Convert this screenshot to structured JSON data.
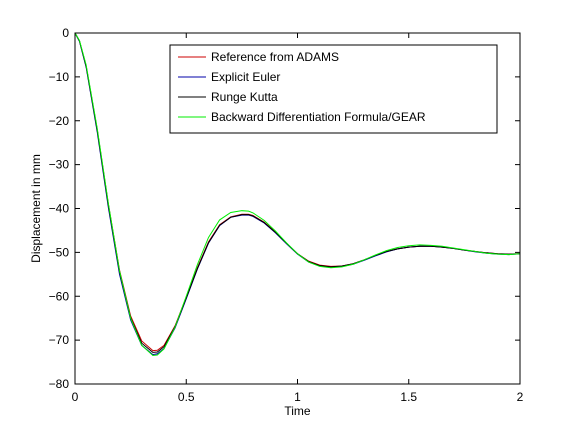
{
  "chart_data": {
    "type": "line",
    "xlabel": "Time",
    "ylabel": "Displacement in mm",
    "xlim": [
      0,
      2
    ],
    "ylim": [
      -80,
      0
    ],
    "xticks": [
      0,
      0.5,
      1,
      1.5,
      2
    ],
    "xtick_labels": [
      "0",
      "0.5",
      "1",
      "1.5",
      "2"
    ],
    "yticks": [
      0,
      -10,
      -20,
      -30,
      -40,
      -50,
      -60,
      -70,
      -80
    ],
    "ytick_labels": [
      "0",
      "−10",
      "−20",
      "−30",
      "−40",
      "−50",
      "−60",
      "−70",
      "−80"
    ],
    "legend_position": "top-right",
    "grid": false,
    "series": [
      {
        "name": "Reference from ADAMS",
        "color": "#cc0000",
        "x": [
          0,
          0.02,
          0.05,
          0.1,
          0.15,
          0.2,
          0.25,
          0.3,
          0.35,
          0.37,
          0.4,
          0.45,
          0.5,
          0.55,
          0.6,
          0.65,
          0.7,
          0.75,
          0.78,
          0.8,
          0.85,
          0.9,
          0.95,
          1.0,
          1.05,
          1.1,
          1.15,
          1.2,
          1.25,
          1.3,
          1.35,
          1.4,
          1.45,
          1.5,
          1.55,
          1.6,
          1.65,
          1.7,
          1.75,
          1.8,
          1.85,
          1.9,
          1.95,
          2.0
        ],
        "values": [
          0,
          -1.8,
          -7.5,
          -22,
          -39,
          -54,
          -64.5,
          -70.2,
          -72.4,
          -72.3,
          -71.2,
          -66.7,
          -60.2,
          -53.5,
          -47.6,
          -43.7,
          -41.9,
          -41.3,
          -41.3,
          -41.6,
          -43.1,
          -45.3,
          -47.9,
          -50.3,
          -52.0,
          -52.9,
          -53.2,
          -53.1,
          -52.6,
          -51.7,
          -50.7,
          -49.8,
          -49.2,
          -48.8,
          -48.6,
          -48.6,
          -48.8,
          -49.1,
          -49.5,
          -49.8,
          -50.1,
          -50.3,
          -50.4,
          -50.3
        ]
      },
      {
        "name": "Explicit Euler",
        "color": "#0000aa",
        "x": [
          0,
          0.02,
          0.05,
          0.1,
          0.15,
          0.2,
          0.25,
          0.3,
          0.35,
          0.37,
          0.4,
          0.45,
          0.5,
          0.55,
          0.6,
          0.65,
          0.7,
          0.75,
          0.78,
          0.8,
          0.85,
          0.9,
          0.95,
          1.0,
          1.05,
          1.1,
          1.15,
          1.2,
          1.25,
          1.3,
          1.35,
          1.4,
          1.45,
          1.5,
          1.55,
          1.6,
          1.65,
          1.7,
          1.75,
          1.8,
          1.85,
          1.9,
          1.95,
          2.0
        ],
        "values": [
          0,
          -1.9,
          -7.8,
          -22.6,
          -39.8,
          -55,
          -65.4,
          -71.2,
          -73.3,
          -73.1,
          -71.9,
          -67.2,
          -60.6,
          -53.8,
          -47.9,
          -43.9,
          -42.0,
          -41.5,
          -41.5,
          -41.8,
          -43.3,
          -45.5,
          -48.0,
          -50.4,
          -52.2,
          -53.1,
          -53.4,
          -53.2,
          -52.7,
          -51.8,
          -50.8,
          -49.9,
          -49.2,
          -48.8,
          -48.6,
          -48.6,
          -48.8,
          -49.1,
          -49.5,
          -49.9,
          -50.2,
          -50.4,
          -50.5,
          -50.3
        ]
      },
      {
        "name": "Runge Kutta",
        "color": "#000000",
        "x": [
          0,
          0.02,
          0.05,
          0.1,
          0.15,
          0.2,
          0.25,
          0.3,
          0.35,
          0.37,
          0.4,
          0.45,
          0.5,
          0.55,
          0.6,
          0.65,
          0.7,
          0.75,
          0.78,
          0.8,
          0.85,
          0.9,
          0.95,
          1.0,
          1.05,
          1.1,
          1.15,
          1.2,
          1.25,
          1.3,
          1.35,
          1.4,
          1.45,
          1.5,
          1.55,
          1.6,
          1.65,
          1.7,
          1.75,
          1.8,
          1.85,
          1.9,
          1.95,
          2.0
        ],
        "values": [
          0,
          -1.8,
          -7.6,
          -22.2,
          -39.3,
          -54.4,
          -64.9,
          -70.7,
          -72.8,
          -72.7,
          -71.5,
          -66.9,
          -60.4,
          -53.7,
          -47.8,
          -43.8,
          -42.0,
          -41.4,
          -41.4,
          -41.7,
          -43.2,
          -45.4,
          -47.9,
          -50.3,
          -52.1,
          -53.0,
          -53.3,
          -53.1,
          -52.6,
          -51.7,
          -50.7,
          -49.8,
          -49.2,
          -48.8,
          -48.6,
          -48.6,
          -48.8,
          -49.1,
          -49.5,
          -49.8,
          -50.1,
          -50.3,
          -50.4,
          -50.3
        ]
      },
      {
        "name": "Backward Differentiation Formula/GEAR",
        "color": "#00ee00",
        "x": [
          0,
          0.02,
          0.05,
          0.1,
          0.15,
          0.2,
          0.25,
          0.3,
          0.35,
          0.37,
          0.4,
          0.45,
          0.5,
          0.55,
          0.6,
          0.65,
          0.7,
          0.75,
          0.78,
          0.8,
          0.85,
          0.9,
          0.95,
          1.0,
          1.05,
          1.1,
          1.15,
          1.2,
          1.25,
          1.3,
          1.35,
          1.4,
          1.45,
          1.5,
          1.55,
          1.6,
          1.65,
          1.7,
          1.75,
          1.8,
          1.85,
          1.9,
          1.95,
          2.0
        ],
        "values": [
          0,
          -1.7,
          -7.3,
          -21.8,
          -38.9,
          -54.2,
          -65.0,
          -71.2,
          -73.5,
          -73.4,
          -72.0,
          -67.0,
          -60.0,
          -52.8,
          -46.6,
          -42.6,
          -40.9,
          -40.5,
          -40.6,
          -41.0,
          -42.7,
          -45.1,
          -47.8,
          -50.3,
          -52.2,
          -53.2,
          -53.5,
          -53.3,
          -52.7,
          -51.7,
          -50.6,
          -49.6,
          -48.9,
          -48.5,
          -48.3,
          -48.4,
          -48.6,
          -49.0,
          -49.4,
          -49.8,
          -50.2,
          -50.4,
          -50.5,
          -50.3
        ]
      }
    ]
  }
}
